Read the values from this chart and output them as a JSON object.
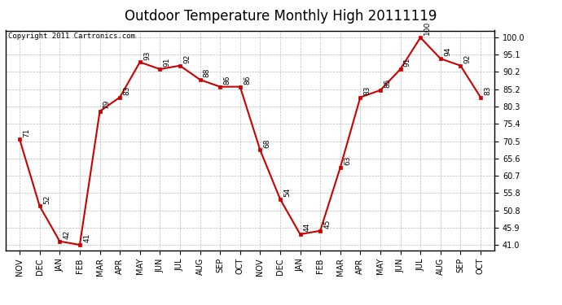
{
  "title": "Outdoor Temperature Monthly High 20111119",
  "copyright": "Copyright 2011 Cartronics.com",
  "months": [
    "NOV",
    "DEC",
    "JAN",
    "FEB",
    "MAR",
    "APR",
    "MAY",
    "JUN",
    "JUL",
    "AUG",
    "SEP",
    "OCT",
    "NOV",
    "DEC",
    "JAN",
    "FEB",
    "MAR",
    "APR",
    "MAY",
    "JUN",
    "JUL",
    "AUG",
    "SEP",
    "OCT"
  ],
  "values": [
    71,
    52,
    42,
    41,
    79,
    83,
    93,
    91,
    92,
    88,
    86,
    86,
    68,
    54,
    44,
    45,
    63,
    83,
    85,
    91,
    100,
    94,
    92,
    83
  ],
  "ylim_min": 41.0,
  "ylim_max": 100.0,
  "yticks": [
    41.0,
    45.9,
    50.8,
    55.8,
    60.7,
    65.6,
    70.5,
    75.4,
    80.3,
    85.2,
    90.2,
    95.1,
    100.0
  ],
  "line_color": "#cc0000",
  "marker": "s",
  "marker_size": 3.5,
  "bg_color": "#ffffff",
  "grid_color": "#bbbbbb",
  "title_fontsize": 12,
  "label_fontsize": 7,
  "copyright_fontsize": 6.5,
  "annot_fontsize": 6.5
}
